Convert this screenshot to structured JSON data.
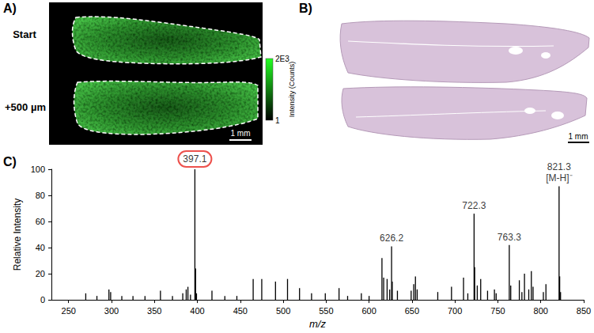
{
  "panel_a": {
    "label": "A)",
    "rows": [
      "Start",
      "+500 µm"
    ],
    "scale_bar": "1 mm",
    "colorbar": {
      "title": "Intensity (Counts)",
      "range": [
        1,
        2000
      ],
      "ticks": [
        1,
        {
          "value": 2000,
          "label": "2E3"
        }
      ]
    }
  },
  "panel_b": {
    "label": "B)",
    "scale_bar": "1 mm"
  },
  "chart_data": {
    "type": "stem",
    "panel_label": "C)",
    "xlabel": "m/z",
    "ylabel": "Relative Intensity",
    "color": "#000000",
    "grid": false,
    "xlim": [
      230,
      850
    ],
    "xticks": [
      250,
      300,
      350,
      400,
      450,
      500,
      550,
      600,
      650,
      700,
      750,
      800,
      850
    ],
    "ylim": [
      0,
      100
    ],
    "yticks": [
      0,
      20,
      40,
      60,
      80,
      100
    ],
    "x": [
      270,
      283,
      297,
      299,
      312,
      325,
      339,
      357,
      371,
      383,
      387,
      389,
      392,
      397.1,
      398,
      399,
      417,
      432,
      446,
      465,
      475,
      491,
      505,
      519,
      533,
      549,
      565,
      575,
      591,
      600,
      615,
      617,
      621,
      624,
      626.2,
      627,
      633,
      649,
      652,
      654,
      656,
      680,
      696,
      710,
      715,
      722.3,
      723,
      726,
      730,
      738,
      746,
      748,
      763.3,
      765,
      775,
      778,
      781,
      786,
      789,
      791,
      803,
      806,
      821.3,
      822,
      823
    ],
    "values": [
      5,
      3,
      8,
      6,
      3,
      3,
      3,
      7,
      3,
      5,
      8,
      10,
      4,
      100,
      24,
      5,
      7,
      3,
      3,
      16,
      16,
      14,
      16,
      9,
      5,
      5,
      9,
      3,
      5,
      3,
      32,
      17,
      16,
      8,
      41,
      14,
      7,
      7,
      12,
      18,
      8,
      6,
      10,
      17,
      5,
      66,
      25,
      11,
      16,
      7,
      8,
      5,
      42,
      11,
      15,
      6,
      20,
      8,
      22,
      10,
      6,
      12,
      87,
      18,
      6
    ],
    "annotations": [
      {
        "x": 397.1,
        "label": [
          "397.1"
        ],
        "marker": "circle",
        "color": "#e8251f"
      },
      {
        "x": 626.2,
        "label": [
          "626.2"
        ]
      },
      {
        "x": 722.3,
        "label": [
          "722.3"
        ]
      },
      {
        "x": 763.3,
        "label": [
          "763.3"
        ]
      },
      {
        "x": 821.3,
        "label": [
          "821.3",
          "[M-H]⁻"
        ]
      }
    ]
  }
}
